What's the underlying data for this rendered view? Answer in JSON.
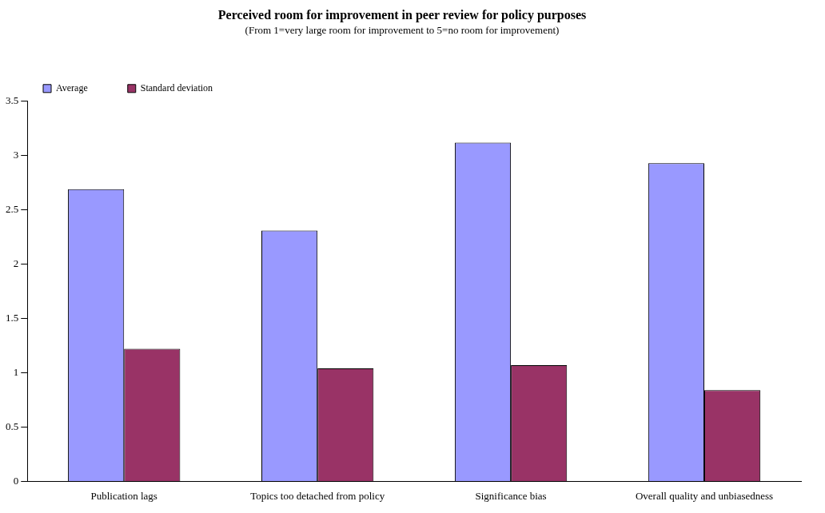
{
  "chart_data": {
    "type": "bar",
    "title": "Perceived room for improvement in peer review for policy purposes",
    "subtitle": "(From 1=very large room for improvement to 5=no room for improvement)",
    "categories": [
      "Publication lags",
      "Topics too detached from policy",
      "Significance bias",
      "Overall quality and unbiasedness"
    ],
    "series": [
      {
        "name": "Average",
        "color": "#9999ff",
        "values": [
          2.69,
          2.31,
          3.12,
          2.93
        ]
      },
      {
        "name": "Standard deviation",
        "color": "#993366",
        "values": [
          1.22,
          1.04,
          1.07,
          0.84
        ]
      }
    ],
    "ylim": [
      0,
      3.5
    ],
    "yticks": [
      0,
      0.5,
      1,
      1.5,
      2,
      2.5,
      3,
      3.5
    ],
    "grid": false,
    "legend": "top left"
  }
}
